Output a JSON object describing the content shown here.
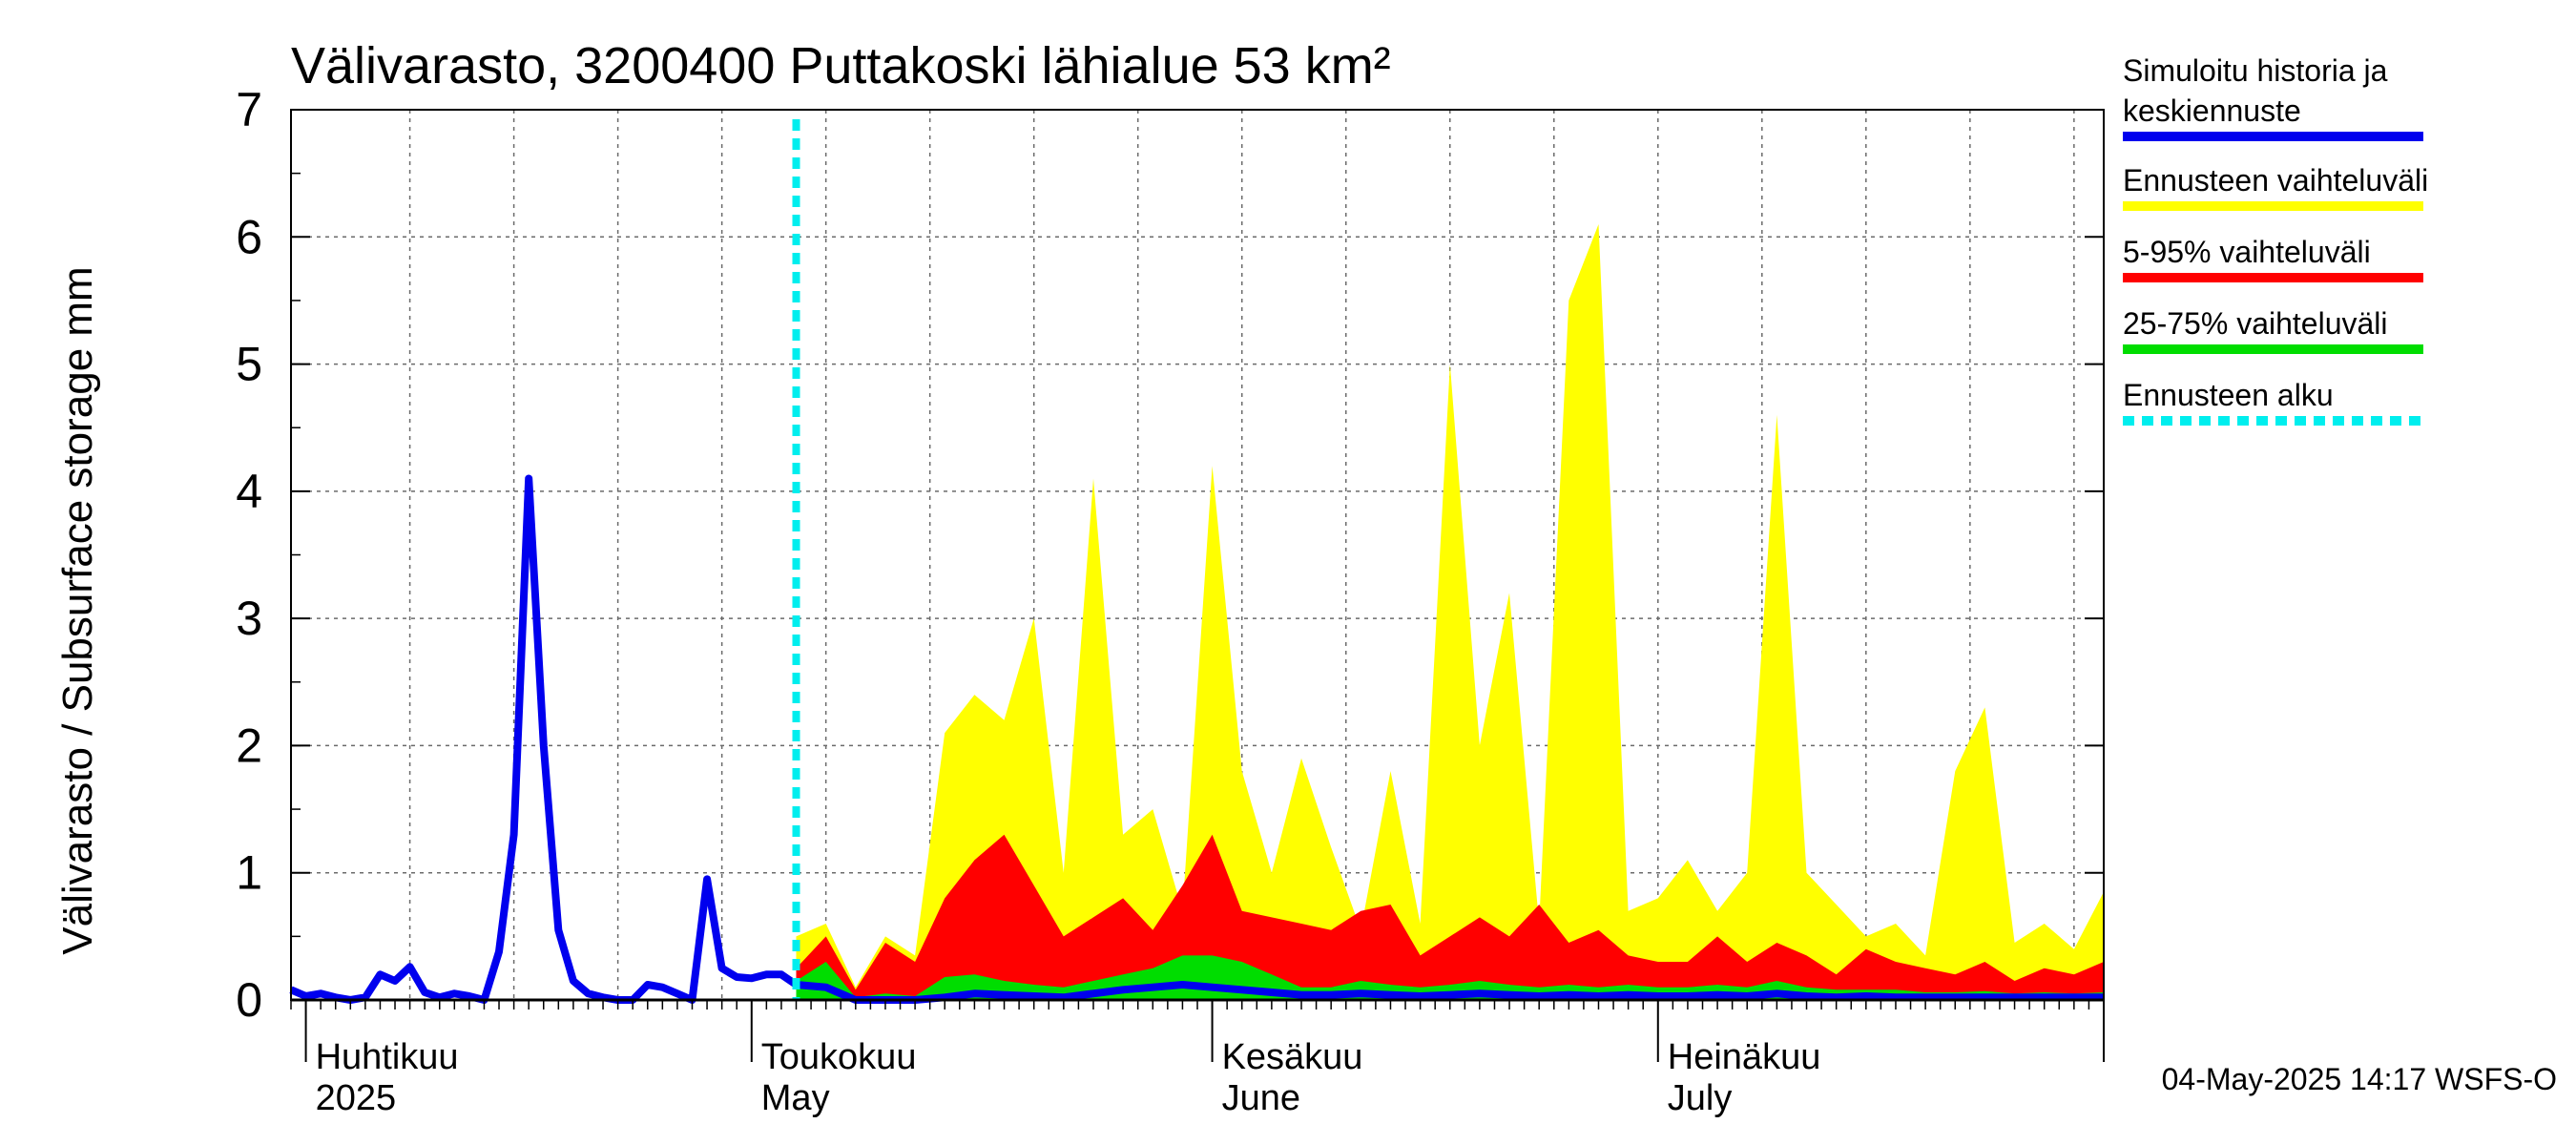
{
  "chart_data": {
    "type": "area",
    "title": "Välivarasto, 3200400 Puttakoski lähialue 53 km²",
    "ylabel": "Välivarasto / Subsurface storage  mm",
    "ylim": [
      0,
      7
    ],
    "yticks": [
      "0",
      "1",
      "2",
      "3",
      "4",
      "5",
      "6",
      "7"
    ],
    "xlim": [
      "2025-03-31",
      "2025-07-31"
    ],
    "grid": true,
    "legend_position": "right",
    "month_ticks": [
      {
        "date": "2025-04-01",
        "label1": "Huhtikuu",
        "label2": "2025"
      },
      {
        "date": "2025-05-01",
        "label1": "Toukokuu",
        "label2": "May"
      },
      {
        "date": "2025-06-01",
        "label1": "Kesäkuu",
        "label2": "June"
      },
      {
        "date": "2025-07-01",
        "label1": "Heinäkuu",
        "label2": "July"
      }
    ],
    "forecast_start": "2025-05-04",
    "legend": [
      {
        "key": "history",
        "label_lines": [
          "Simuloitu historia ja",
          "keskiennuste"
        ],
        "color": "#0000ee",
        "style": "solid"
      },
      {
        "key": "range",
        "label_lines": [
          "Ennusteen vaihteluväli"
        ],
        "color": "#ffff00",
        "style": "solid"
      },
      {
        "key": "p5_95",
        "label_lines": [
          "5-95% vaihteluväli"
        ],
        "color": "#ff0000",
        "style": "solid"
      },
      {
        "key": "p25_75",
        "label_lines": [
          "25-75% vaihteluväli"
        ],
        "color": "#00dd00",
        "style": "solid"
      },
      {
        "key": "start",
        "label_lines": [
          "Ennusteen alku"
        ],
        "color": "#00eeee",
        "style": "dashed"
      }
    ],
    "history": {
      "x": [
        "2025-03-31",
        "2025-04-01",
        "2025-04-02",
        "2025-04-03",
        "2025-04-04",
        "2025-04-05",
        "2025-04-06",
        "2025-04-07",
        "2025-04-08",
        "2025-04-09",
        "2025-04-10",
        "2025-04-11",
        "2025-04-12",
        "2025-04-13",
        "2025-04-14",
        "2025-04-15",
        "2025-04-16",
        "2025-04-17",
        "2025-04-18",
        "2025-04-19",
        "2025-04-20",
        "2025-04-21",
        "2025-04-22",
        "2025-04-23",
        "2025-04-24",
        "2025-04-25",
        "2025-04-26",
        "2025-04-27",
        "2025-04-28",
        "2025-04-29",
        "2025-04-30",
        "2025-05-01",
        "2025-05-02",
        "2025-05-03",
        "2025-05-04"
      ],
      "y": [
        0.08,
        0.03,
        0.05,
        0.02,
        0.0,
        0.02,
        0.2,
        0.15,
        0.26,
        0.06,
        0.02,
        0.05,
        0.03,
        0.0,
        0.38,
        1.3,
        4.1,
        2.0,
        0.55,
        0.15,
        0.05,
        0.02,
        0.0,
        0.0,
        0.12,
        0.1,
        0.05,
        0.0,
        0.95,
        0.25,
        0.18,
        0.17,
        0.2,
        0.2,
        0.12
      ]
    },
    "forecast": {
      "x": [
        "2025-05-04",
        "2025-05-06",
        "2025-05-08",
        "2025-05-10",
        "2025-05-12",
        "2025-05-14",
        "2025-05-16",
        "2025-05-18",
        "2025-05-20",
        "2025-05-22",
        "2025-05-24",
        "2025-05-26",
        "2025-05-28",
        "2025-05-30",
        "2025-06-01",
        "2025-06-03",
        "2025-06-05",
        "2025-06-07",
        "2025-06-09",
        "2025-06-11",
        "2025-06-13",
        "2025-06-15",
        "2025-06-17",
        "2025-06-19",
        "2025-06-21",
        "2025-06-23",
        "2025-06-25",
        "2025-06-27",
        "2025-06-29",
        "2025-07-01",
        "2025-07-03",
        "2025-07-05",
        "2025-07-07",
        "2025-07-09",
        "2025-07-11",
        "2025-07-13",
        "2025-07-15",
        "2025-07-17",
        "2025-07-19",
        "2025-07-21",
        "2025-07-23",
        "2025-07-25",
        "2025-07-27",
        "2025-07-29",
        "2025-07-31"
      ],
      "max": [
        0.5,
        0.6,
        0.1,
        0.5,
        0.35,
        2.1,
        2.4,
        2.2,
        3.0,
        1.0,
        4.1,
        1.3,
        1.5,
        0.7,
        4.2,
        1.8,
        1.0,
        1.9,
        1.2,
        0.55,
        1.8,
        0.6,
        5.0,
        2.0,
        3.2,
        0.6,
        5.5,
        6.1,
        0.7,
        0.8,
        1.1,
        0.7,
        1.0,
        4.6,
        1.0,
        0.75,
        0.5,
        0.6,
        0.35,
        1.8,
        2.3,
        0.45,
        0.6,
        0.4,
        0.85
      ],
      "p95": [
        0.25,
        0.5,
        0.08,
        0.45,
        0.3,
        0.8,
        1.1,
        1.3,
        0.9,
        0.5,
        0.65,
        0.8,
        0.55,
        0.9,
        1.3,
        0.7,
        0.65,
        0.6,
        0.55,
        0.7,
        0.75,
        0.35,
        0.5,
        0.65,
        0.5,
        0.75,
        0.45,
        0.55,
        0.35,
        0.3,
        0.3,
        0.5,
        0.3,
        0.45,
        0.35,
        0.2,
        0.4,
        0.3,
        0.25,
        0.2,
        0.3,
        0.15,
        0.25,
        0.2,
        0.3
      ],
      "p75": [
        0.15,
        0.3,
        0.02,
        0.05,
        0.03,
        0.18,
        0.2,
        0.15,
        0.12,
        0.1,
        0.15,
        0.2,
        0.25,
        0.35,
        0.35,
        0.3,
        0.2,
        0.1,
        0.1,
        0.15,
        0.12,
        0.1,
        0.12,
        0.15,
        0.12,
        0.1,
        0.12,
        0.1,
        0.12,
        0.1,
        0.1,
        0.12,
        0.1,
        0.15,
        0.1,
        0.08,
        0.08,
        0.08,
        0.06,
        0.06,
        0.07,
        0.05,
        0.06,
        0.05,
        0.06
      ],
      "median": [
        0.12,
        0.1,
        0.0,
        0.0,
        0.0,
        0.02,
        0.05,
        0.04,
        0.03,
        0.02,
        0.05,
        0.08,
        0.1,
        0.12,
        0.1,
        0.08,
        0.06,
        0.04,
        0.04,
        0.05,
        0.04,
        0.03,
        0.04,
        0.05,
        0.04,
        0.03,
        0.04,
        0.03,
        0.04,
        0.03,
        0.03,
        0.04,
        0.03,
        0.05,
        0.03,
        0.02,
        0.03,
        0.02,
        0.02,
        0.02,
        0.02,
        0.02,
        0.02,
        0.02,
        0.02
      ]
    }
  },
  "footer": {
    "timestamp": "04-May-2025 14:17 WSFS-O"
  }
}
